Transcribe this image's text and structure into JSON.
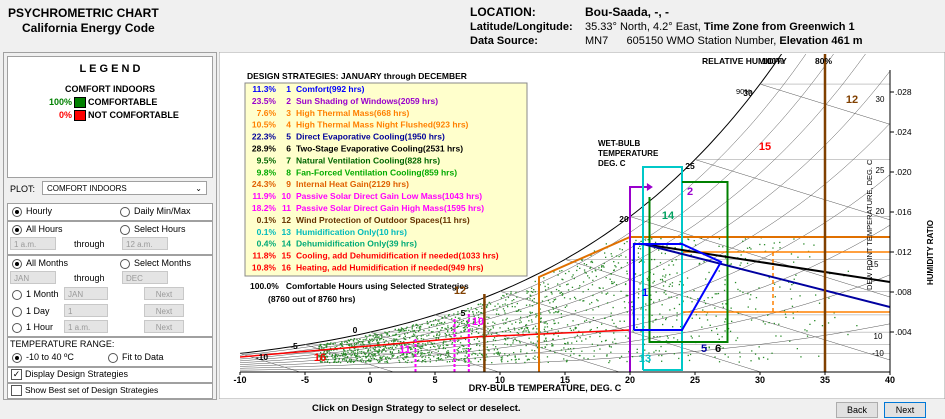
{
  "header": {
    "title": "PSYCHROMETRIC CHART",
    "subtitle": "California Energy Code",
    "location_label": "LOCATION:",
    "location": "Bou-Saada, -, -",
    "latlon_label": "Latitude/Longitude:",
    "latlon": "35.33° North, 4.2° East,",
    "tz_label": "Time Zone from Greenwich 1",
    "source_label": "Data Source:",
    "source": "MN7      605150 WMO Station Number,",
    "elev_label": "Elevation 461 m"
  },
  "legend": {
    "title": "L E G E N D",
    "heading": "COMFORT INDOORS",
    "items": [
      {
        "pct": "100%",
        "label": "COMFORTABLE",
        "color": "#008000"
      },
      {
        "pct": "0%",
        "label": "NOT COMFORTABLE",
        "color": "#ff0000"
      }
    ]
  },
  "controls": {
    "plot_label": "PLOT:",
    "plot_value": "COMFORT INDOORS",
    "hourly": "Hourly",
    "daily": "Daily Min/Max",
    "all_hours": "All Hours",
    "select_hours": "Select Hours",
    "hour_from": "1 a.m.",
    "through": "through",
    "hour_to": "12 a.m.",
    "all_months": "All Months",
    "select_months": "Select Months",
    "month_from": "JAN",
    "month_to": "DEC",
    "one_month": "1 Month",
    "one_month_value": "JAN",
    "one_day": "1 Day",
    "one_day_value": "1",
    "one_hour": "1 Hour",
    "one_hour_value": "1 a.m.",
    "next": "Next",
    "temp_range": "TEMPERATURE RANGE:",
    "range_fixed": "-10 to 40 ºC",
    "range_fit": "Fit to Data",
    "display_strategies": "Display Design Strategies",
    "show_best": "Show Best set of Design Strategies"
  },
  "chart": {
    "strategies_title": "DESIGN STRATEGIES:  JANUARY through DECEMBER",
    "strategies": [
      {
        "pct": "11.3%",
        "num": "1",
        "label": "Comfort(992 hrs)",
        "color": "#0000ff"
      },
      {
        "pct": "23.5%",
        "num": "2",
        "label": "Sun Shading of Windows(2059 hrs)",
        "color": "#9900cc"
      },
      {
        "pct": "7.6%",
        "num": "3",
        "label": "High Thermal Mass(668 hrs)",
        "color": "#ff8000"
      },
      {
        "pct": "10.5%",
        "num": "4",
        "label": "High Thermal Mass Night Flushed(923 hrs)",
        "color": "#ff8000"
      },
      {
        "pct": "22.3%",
        "num": "5",
        "label": "Direct Evaporative Cooling(1950 hrs)",
        "color": "#000099"
      },
      {
        "pct": "28.9%",
        "num": "6",
        "label": "Two-Stage Evaporative Cooling(2531 hrs)",
        "color": "#000000"
      },
      {
        "pct": "9.5%",
        "num": "7",
        "label": "Natural Ventilation Cooling(828 hrs)",
        "color": "#006600"
      },
      {
        "pct": "9.8%",
        "num": "8",
        "label": "Fan-Forced Ventilation Cooling(859 hrs)",
        "color": "#00aa00"
      },
      {
        "pct": "24.3%",
        "num": "9",
        "label": "Internal Heat Gain(2129 hrs)",
        "color": "#e06000"
      },
      {
        "pct": "11.9%",
        "num": "10",
        "label": "Passive Solar Direct Gain Low Mass(1043 hrs)",
        "color": "#ff00ff"
      },
      {
        "pct": "18.2%",
        "num": "11",
        "label": "Passive Solar Direct Gain High Mass(1595 hrs)",
        "color": "#ff00ff"
      },
      {
        "pct": "0.1%",
        "num": "12",
        "label": "Wind Protection of Outdoor Spaces(11 hrs)",
        "color": "#663300"
      },
      {
        "pct": "0.1%",
        "num": "13",
        "label": "Humidification Only(10 hrs)",
        "color": "#00bbbb"
      },
      {
        "pct": "0.4%",
        "num": "14",
        "label": "Dehumidification Only(39 hrs)",
        "color": "#00aa77"
      },
      {
        "pct": "11.8%",
        "num": "15",
        "label": "Cooling, add Dehumidification if needed(1033 hrs)",
        "color": "#ff0000"
      },
      {
        "pct": "10.8%",
        "num": "16",
        "label": "Heating, add Humidification if needed(949 hrs)",
        "color": "#ff0000"
      }
    ],
    "summary": "100.0%   Comfortable Hours using Selected Strategies",
    "summary_hours": "(8760 out of 8760 hrs)",
    "rh_title": "RELATIVE HUMIDITY",
    "rh_labels": [
      "100%",
      "80%",
      "90%"
    ],
    "wb_title": [
      "WET-BULB",
      "TEMPERATURE",
      "DEG. C"
    ],
    "wb_labels": [
      "30",
      "25",
      "20",
      "5",
      "0",
      "-5",
      "-10"
    ],
    "dp_labels": [
      "30",
      "25",
      "20",
      "15",
      "10",
      "-10"
    ],
    "dp_title": "DEW POINT TEMPERATURE, DEG. C",
    "hr_title": "HUMIDITY RATIO",
    "x_title": "DRY-BULB TEMPERATURE, DEG. C",
    "xticks": [
      -10,
      -5,
      0,
      5,
      10,
      15,
      20,
      25,
      30,
      35,
      40
    ],
    "yticks": [
      {
        "value": 0.004,
        "label": ".004"
      },
      {
        "value": 0.008,
        "label": ".008"
      },
      {
        "value": 0.012,
        "label": ".012"
      },
      {
        "value": 0.016,
        "label": ".016"
      },
      {
        "value": 0.02,
        "label": ".020"
      },
      {
        "value": 0.024,
        "label": ".024"
      },
      {
        "value": 0.028,
        "label": ".028"
      }
    ],
    "zone_labels": [
      {
        "text": "16",
        "color": "#ff0000"
      },
      {
        "text": "11",
        "color": "#ff00ff"
      },
      {
        "text": "10",
        "color": "#ff00ff"
      },
      {
        "text": "12",
        "color": "#804000"
      },
      {
        "text": "1",
        "color": "#0000ff"
      },
      {
        "text": "13",
        "color": "#00c0c0"
      },
      {
        "text": "5",
        "color": "#0000a0"
      },
      {
        "text": "6",
        "color": "#000000"
      },
      {
        "text": "14",
        "color": "#00a060"
      },
      {
        "text": "2",
        "color": "#9900cc"
      },
      {
        "text": "15",
        "color": "#ff0000"
      },
      {
        "text": "12",
        "color": "#804000"
      }
    ]
  },
  "footer": {
    "hint": "Click on Design Strategy to select or deselect.",
    "back": "Back",
    "next": "Next"
  }
}
